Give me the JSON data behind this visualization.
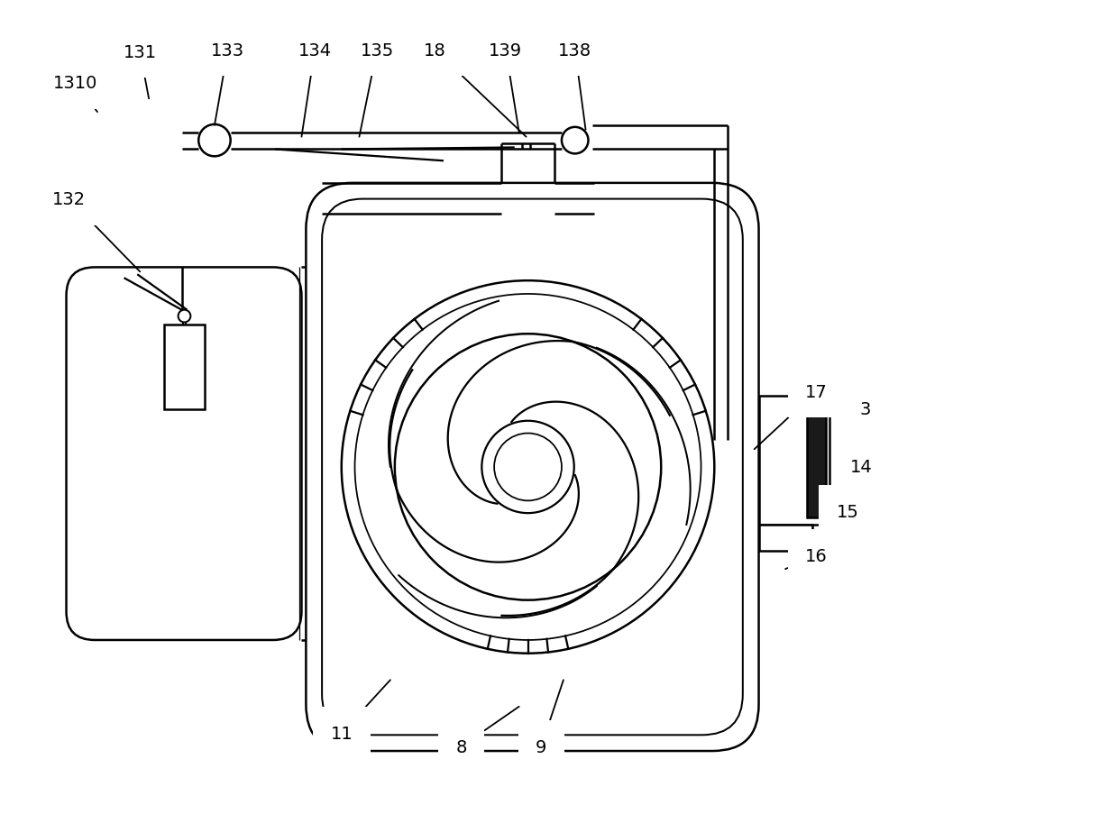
{
  "bg_color": "#ffffff",
  "line_color": "#000000",
  "line_width": 1.8,
  "fig_width": 12.4,
  "fig_height": 9.04
}
